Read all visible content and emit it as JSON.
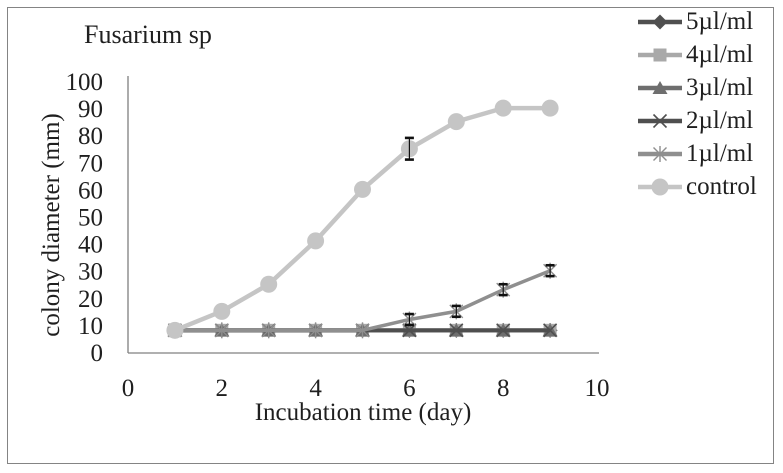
{
  "figure": {
    "background": "#ffffff",
    "border_color": "#848484",
    "axis_color": "#808080",
    "text_color": "#1f1f1f",
    "error_bar_color": "#111111"
  },
  "chart_data": {
    "type": "line",
    "title": "Fusarium sp",
    "xlabel": "Incubation time (day)",
    "ylabel": "colony diameter (mm)",
    "xlim": [
      0,
      10
    ],
    "ylim": [
      0,
      100
    ],
    "x_ticks": [
      0,
      2,
      4,
      6,
      8,
      10
    ],
    "y_ticks": [
      0,
      10,
      20,
      30,
      40,
      50,
      60,
      70,
      80,
      90,
      100
    ],
    "grid": false,
    "legend_position": "right",
    "x": [
      1,
      2,
      3,
      4,
      5,
      6,
      7,
      8,
      9
    ],
    "series": [
      {
        "name": "5µl/ml",
        "marker": "diamond",
        "color": "#4f4f4f",
        "line_width": 4,
        "values": [
          8,
          8,
          8,
          8,
          8,
          8,
          8,
          8,
          8
        ],
        "errors": [
          0,
          0,
          0,
          0,
          0,
          0,
          0,
          0,
          0
        ]
      },
      {
        "name": "4µl/ml",
        "marker": "square",
        "color": "#a9a9a9",
        "line_width": 4,
        "values": [
          8,
          8,
          8,
          8,
          8,
          8,
          8,
          8,
          8
        ],
        "errors": [
          0,
          0,
          0,
          0,
          0,
          0,
          0,
          0,
          0
        ]
      },
      {
        "name": "3µl/ml",
        "marker": "triangle",
        "color": "#6e6e6e",
        "line_width": 4,
        "values": [
          8,
          8,
          8,
          8,
          8,
          8,
          8,
          8,
          8
        ],
        "errors": [
          0,
          0,
          0,
          0,
          0,
          0,
          0,
          0,
          0
        ]
      },
      {
        "name": "2µl/ml",
        "marker": "x",
        "color": "#4f4f4f",
        "line_width": 4,
        "values": [
          8,
          8,
          8,
          8,
          8,
          8,
          8,
          8,
          8
        ],
        "errors": [
          0,
          0,
          0,
          0,
          0,
          0,
          0,
          0,
          0
        ]
      },
      {
        "name": "1µl/ml",
        "marker": "asterisk",
        "color": "#8f8f8f",
        "line_width": 3.5,
        "values": [
          8,
          8,
          8,
          8,
          8,
          12,
          15,
          23,
          30
        ],
        "errors": [
          0,
          0,
          0,
          0,
          0,
          2,
          2,
          2,
          2
        ]
      },
      {
        "name": "control",
        "marker": "circle",
        "color": "#c5c5c5",
        "line_width": 4.5,
        "values": [
          8,
          15,
          25,
          41,
          60,
          75,
          85,
          90,
          90
        ],
        "errors": [
          0,
          0,
          0,
          0,
          0,
          4,
          0,
          0,
          0
        ]
      }
    ]
  }
}
